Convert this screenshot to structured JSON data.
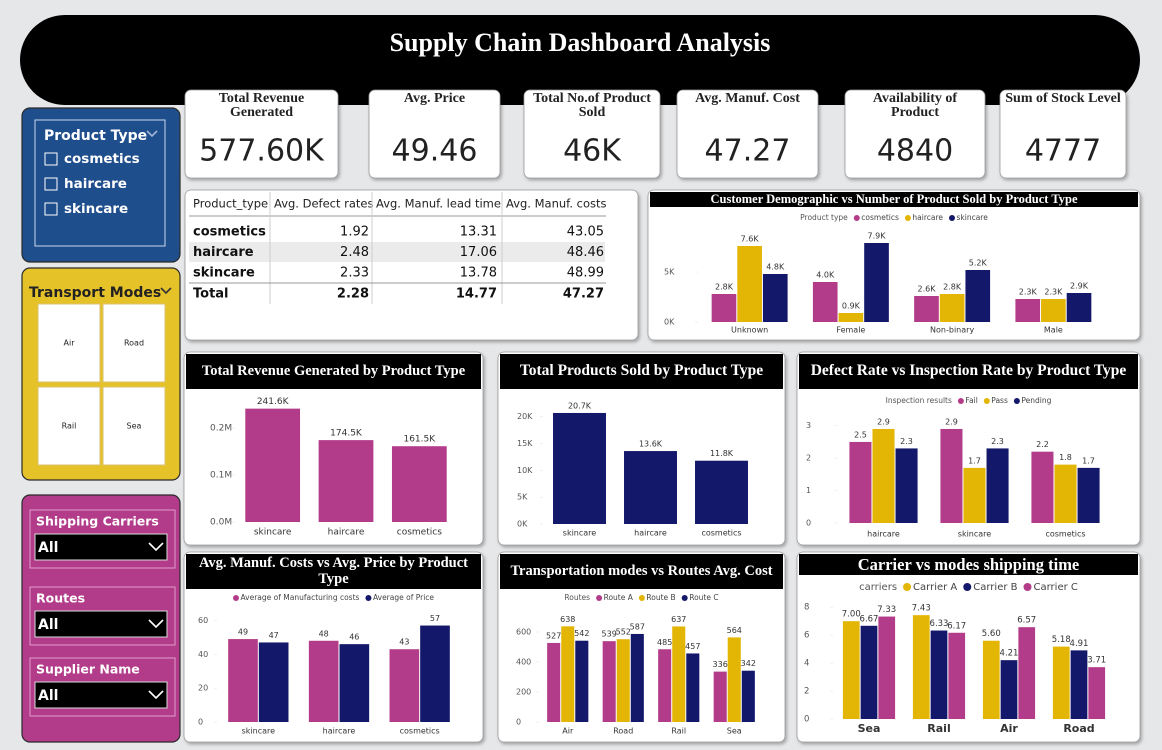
{
  "header": {
    "title": "Supply Chain Dashboard Analysis"
  },
  "kpis": [
    {
      "title": "Total Revenue Generated",
      "value": "577.60K"
    },
    {
      "title": "Avg. Price",
      "value": 49.46
    },
    {
      "title": "Total No.of Product Sold",
      "value": "46K"
    },
    {
      "title": "Avg. Manuf. Cost",
      "value": 47.27
    },
    {
      "title": "Availability of Product",
      "value": 4840
    },
    {
      "title": "Sum of Stock Level",
      "value": 4777
    }
  ],
  "slicers": {
    "product_type": {
      "title": "Product Type",
      "items": [
        "cosmetics",
        "haircare",
        "skincare"
      ]
    },
    "transport_modes": {
      "title": "Transport Modes",
      "items": [
        "Air",
        "Road",
        "Rail",
        "Sea"
      ]
    },
    "dropdowns": [
      {
        "title": "Shipping Carriers",
        "selected": "All"
      },
      {
        "title": "Routes",
        "selected": "All"
      },
      {
        "title": "Supplier Name",
        "selected": "All"
      }
    ]
  },
  "table": {
    "columns": [
      "Product_type",
      "Avg. Defect rates",
      "Avg. Manuf. lead time",
      "Avg. Manuf. costs"
    ],
    "rows": [
      [
        "cosmetics",
        1.92,
        13.31,
        43.05
      ],
      [
        "haircare",
        2.48,
        17.06,
        48.46
      ],
      [
        "skincare",
        2.33,
        13.78,
        48.99
      ]
    ],
    "total": [
      "Total",
      2.28,
      14.77,
      47.27
    ]
  },
  "chart_data": [
    {
      "type": "bar",
      "title": "Customer Demographic vs Number of Product Sold by Product Type",
      "legend_title": "Product type",
      "categories": [
        "Unknown",
        "Female",
        "Non-binary",
        "Male"
      ],
      "series": [
        {
          "name": "cosmetics",
          "color": "#b33c8a",
          "values": [
            2800,
            4000,
            2600,
            2300
          ],
          "value_labels": [
            "2.8K",
            "4.0K",
            "2.6K",
            "2.3K"
          ]
        },
        {
          "name": "haircare",
          "color": "#e3b505",
          "values": [
            7600,
            900,
            2800,
            2300
          ],
          "value_labels": [
            "7.6K",
            "0.9K",
            "2.8K",
            "2.3K"
          ]
        },
        {
          "name": "skincare",
          "color": "#14186b",
          "values": [
            4800,
            7900,
            5200,
            2900
          ],
          "value_labels": [
            "4.8K",
            "7.9K",
            "5.2K",
            "2.9K"
          ]
        }
      ],
      "ylim": [
        0,
        9000
      ],
      "yticks": [
        {
          "value": 0,
          "label": "0K"
        },
        {
          "value": 5000,
          "label": "5K"
        }
      ]
    },
    {
      "type": "bar",
      "title": "Total Revenue Generated by Product Type",
      "categories": [
        "skincare",
        "haircare",
        "cosmetics"
      ],
      "values": [
        241600,
        174500,
        161500
      ],
      "value_labels": [
        "241.6K",
        "174.5K",
        "161.5K"
      ],
      "color": "#b33c8a",
      "ylim": [
        0,
        260000
      ],
      "yticks": [
        {
          "value": 0,
          "label": "0.0M"
        },
        {
          "value": 100000,
          "label": "0.1M"
        },
        {
          "value": 200000,
          "label": "0.2M"
        }
      ]
    },
    {
      "type": "bar",
      "title": "Total Products Sold by Product Type",
      "categories": [
        "skincare",
        "haircare",
        "cosmetics"
      ],
      "values": [
        20700,
        13600,
        11800
      ],
      "value_labels": [
        "20.7K",
        "13.6K",
        "11.8K"
      ],
      "color": "#14186b",
      "ylim": [
        0,
        22000
      ],
      "yticks": [
        {
          "value": 0,
          "label": "0K"
        },
        {
          "value": 5000,
          "label": "5K"
        },
        {
          "value": 10000,
          "label": "10K"
        },
        {
          "value": 15000,
          "label": "15K"
        },
        {
          "value": 20000,
          "label": "20K"
        }
      ]
    },
    {
      "type": "bar",
      "title": "Defect Rate vs Inspection Rate by Product Type",
      "legend_title": "Inspection results",
      "categories": [
        "haircare",
        "skincare",
        "cosmetics"
      ],
      "series": [
        {
          "name": "Fail",
          "color": "#b33c8a",
          "values": [
            2.5,
            2.9,
            2.2
          ]
        },
        {
          "name": "Pass",
          "color": "#e3b505",
          "values": [
            2.9,
            1.7,
            1.8
          ]
        },
        {
          "name": "Pending",
          "color": "#14186b",
          "values": [
            2.3,
            2.3,
            1.7
          ]
        }
      ],
      "ylim": [
        0,
        3.3
      ],
      "yticks": [
        0,
        1,
        2,
        3
      ]
    },
    {
      "type": "bar",
      "title": "Avg. Manuf. Costs vs Avg. Price by Product Type",
      "categories": [
        "skincare",
        "haircare",
        "cosmetics"
      ],
      "series": [
        {
          "name": "Average of Manufacturing costs",
          "color": "#b33c8a",
          "values": [
            49,
            48,
            43
          ]
        },
        {
          "name": "Average of Price",
          "color": "#14186b",
          "values": [
            47,
            46,
            57
          ]
        }
      ],
      "ylim": [
        0,
        65
      ],
      "yticks": [
        0,
        20,
        40,
        60
      ]
    },
    {
      "type": "bar",
      "title": "Transportation modes vs Routes Avg. Cost",
      "legend_title": "Routes",
      "categories": [
        "Air",
        "Road",
        "Rail",
        "Sea"
      ],
      "series": [
        {
          "name": "Route A",
          "color": "#b33c8a",
          "values": [
            527,
            539,
            485,
            336
          ]
        },
        {
          "name": "Route B",
          "color": "#e3b505",
          "values": [
            638,
            552,
            637,
            564
          ]
        },
        {
          "name": "Route C",
          "color": "#14186b",
          "values": [
            542,
            587,
            457,
            342
          ]
        }
      ],
      "ylim": [
        0,
        680
      ],
      "yticks": [
        0,
        200,
        400,
        600
      ]
    },
    {
      "type": "bar",
      "title": "Carrier vs modes shipping time",
      "legend_title": "carriers",
      "categories": [
        "Sea",
        "Rail",
        "Air",
        "Road"
      ],
      "series": [
        {
          "name": "Carrier A",
          "color": "#e3b505",
          "values": [
            7,
            7.43,
            5.6,
            5.18
          ],
          "value_labels": [
            "7.00",
            "7.43",
            "5.60",
            "5.18"
          ]
        },
        {
          "name": "Carrier B",
          "color": "#14186b",
          "values": [
            6.67,
            6.33,
            4.21,
            4.91
          ]
        },
        {
          "name": "Carrier C",
          "color": "#b33c8a",
          "values": [
            7.33,
            6.17,
            6.57,
            3.71
          ]
        }
      ],
      "ylim": [
        0,
        8.3
      ],
      "yticks": [
        0,
        2,
        4,
        6,
        8
      ]
    }
  ]
}
